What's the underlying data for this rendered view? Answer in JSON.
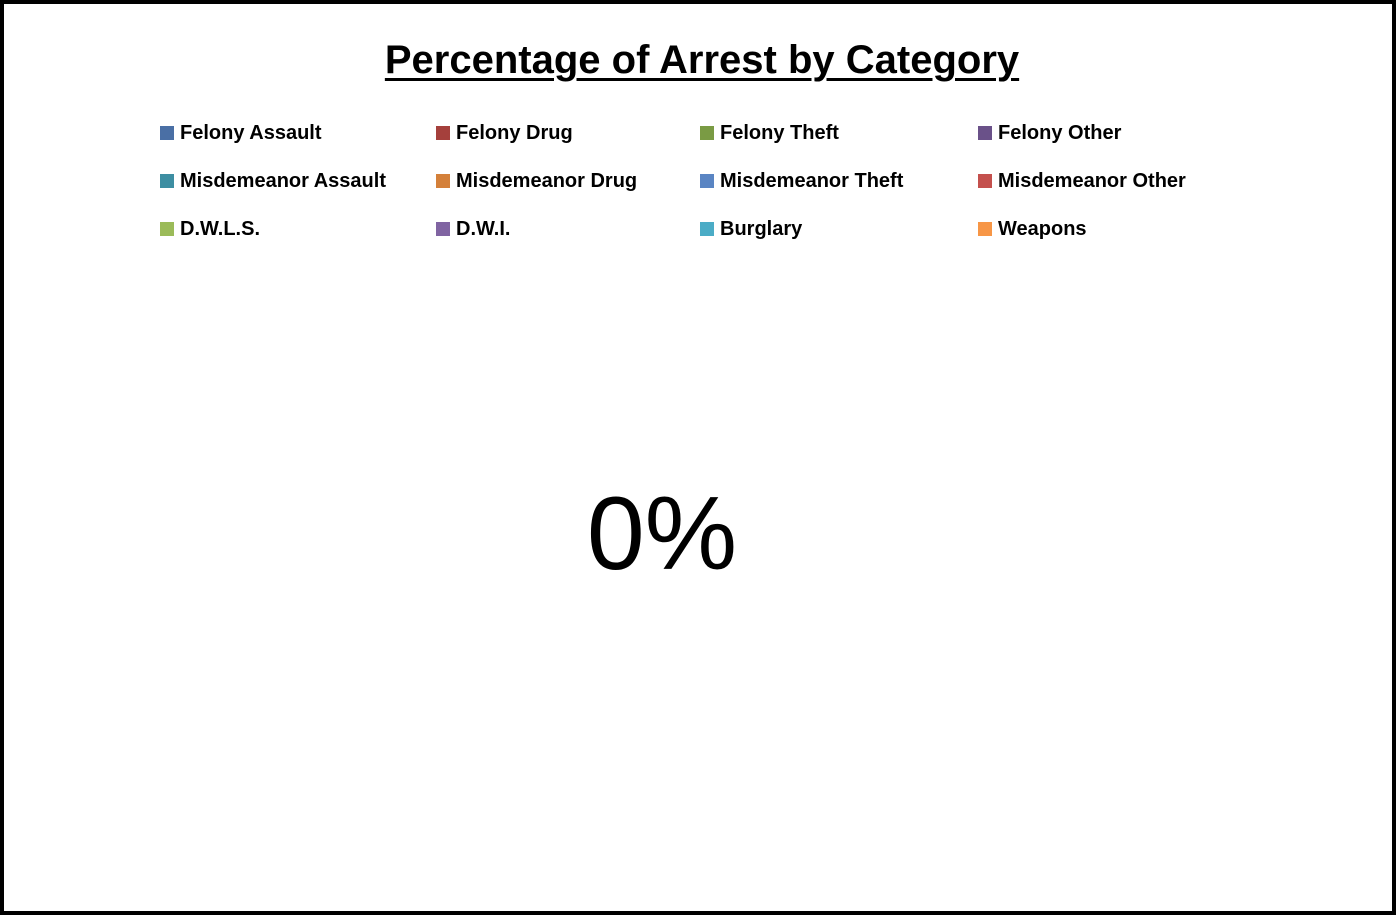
{
  "chart_data": {
    "type": "pie",
    "title": "Percentage of Arrest by Category",
    "legend_position": "top",
    "series": [
      {
        "name": "Felony Assault",
        "value": 0,
        "color": "#4a6fa5"
      },
      {
        "name": "Felony Drug",
        "value": 0,
        "color": "#a5403c"
      },
      {
        "name": "Felony Theft",
        "value": 0,
        "color": "#7a9b44"
      },
      {
        "name": "Felony Other",
        "value": 0,
        "color": "#6a5189"
      },
      {
        "name": "Misdemeanor Assault",
        "value": 0,
        "color": "#3d8ea2"
      },
      {
        "name": "Misdemeanor Drug",
        "value": 0,
        "color": "#d4803a"
      },
      {
        "name": "Misdemeanor Theft",
        "value": 0,
        "color": "#5a85c3"
      },
      {
        "name": "Misdemeanor Other",
        "value": 0,
        "color": "#c4504d"
      },
      {
        "name": "D.W.L.S.",
        "value": 0,
        "color": "#9bbb59"
      },
      {
        "name": "D.W.I.",
        "value": 0,
        "color": "#8064a2"
      },
      {
        "name": "Burglary",
        "value": 0,
        "color": "#4bacc6"
      },
      {
        "name": "Weapons",
        "value": 0,
        "color": "#f79646"
      }
    ],
    "data_label": "0%"
  }
}
